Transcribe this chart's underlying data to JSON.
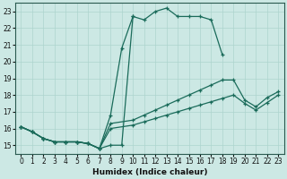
{
  "bg_color": "#cce8e4",
  "grid_color": "#add4ce",
  "line_color": "#1a6b5a",
  "xlabel": "Humidex (Indice chaleur)",
  "xlim": [
    -0.5,
    23.5
  ],
  "ylim": [
    14.5,
    23.5
  ],
  "yticks": [
    15,
    16,
    17,
    18,
    19,
    20,
    21,
    22,
    23
  ],
  "xticks": [
    0,
    1,
    2,
    3,
    4,
    5,
    6,
    7,
    8,
    9,
    10,
    11,
    12,
    13,
    14,
    15,
    16,
    17,
    18,
    19,
    20,
    21,
    22,
    23
  ],
  "line_main_x": [
    0,
    1,
    2,
    3,
    4,
    5,
    6,
    7,
    8,
    9,
    10,
    11,
    12,
    13,
    14,
    15,
    16,
    17,
    18
  ],
  "line_main_y": [
    16.1,
    15.8,
    15.4,
    15.2,
    15.2,
    15.2,
    15.1,
    14.8,
    15.0,
    15.0,
    22.7,
    22.5,
    23.0,
    23.2,
    22.7,
    22.7,
    22.7,
    22.5,
    20.4
  ],
  "line_rise_x": [
    0,
    1,
    2,
    3,
    4,
    5,
    6,
    7,
    8,
    9,
    10
  ],
  "line_rise_y": [
    16.1,
    15.8,
    15.4,
    15.2,
    15.2,
    15.2,
    15.1,
    14.8,
    16.8,
    20.8,
    22.7
  ],
  "line_upper_x": [
    0,
    1,
    2,
    3,
    4,
    5,
    6,
    7,
    8,
    10,
    11,
    12,
    13,
    14,
    15,
    16,
    17,
    18,
    19,
    20,
    21,
    22,
    23
  ],
  "line_upper_y": [
    16.1,
    15.8,
    15.4,
    15.2,
    15.2,
    15.2,
    15.1,
    14.8,
    16.3,
    16.5,
    16.8,
    17.1,
    17.4,
    17.7,
    18.0,
    18.3,
    18.6,
    18.9,
    18.9,
    17.7,
    17.3,
    17.85,
    18.2
  ],
  "line_lower_x": [
    0,
    1,
    2,
    3,
    4,
    5,
    6,
    7,
    8,
    10,
    11,
    12,
    13,
    14,
    15,
    16,
    17,
    18,
    19,
    20,
    21,
    22,
    23
  ],
  "line_lower_y": [
    16.1,
    15.8,
    15.4,
    15.2,
    15.2,
    15.2,
    15.1,
    14.8,
    16.0,
    16.2,
    16.4,
    16.6,
    16.8,
    17.0,
    17.2,
    17.4,
    17.6,
    17.8,
    18.0,
    17.5,
    17.1,
    17.55,
    18.0
  ]
}
